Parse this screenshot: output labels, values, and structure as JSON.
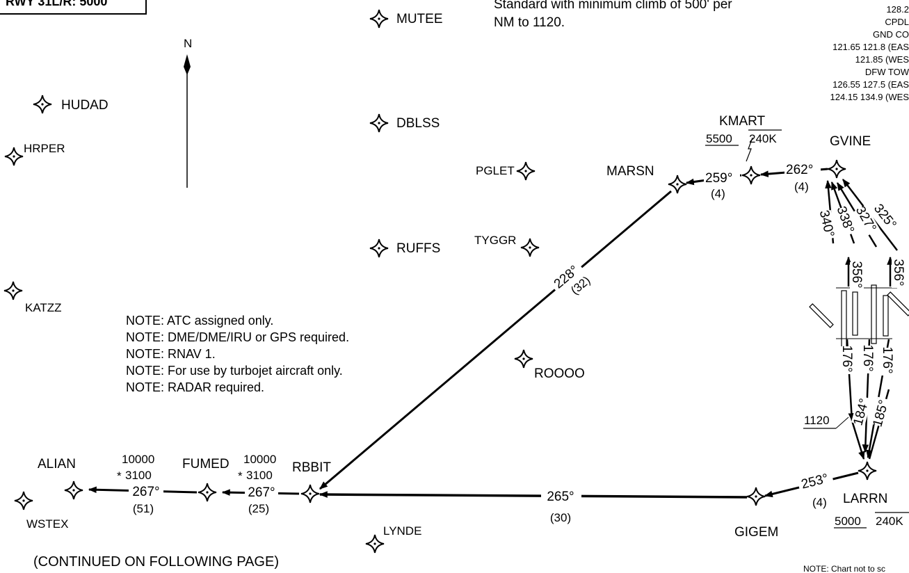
{
  "header": {
    "runway_box": "RWY 31L/R: 5000",
    "climb_text": [
      "Standard with minimum climb of 500' per",
      "NM to 1120."
    ]
  },
  "frequencies": {
    "lines": [
      "128.2",
      "CPDL",
      "GND CO",
      "121.65 121.8 (EAS",
      "121.85 (WES",
      "DFW TOW",
      "126.55  127.5 (EAS",
      "124.15  134.9 (WES"
    ]
  },
  "north_arrow": {
    "label": "N"
  },
  "fixes": {
    "mutee": "MUTEE",
    "hudad": "HUDAD",
    "hrper": "HRPER",
    "dblss": "DBLSS",
    "pglet": "PGLET",
    "marsn": "MARSN",
    "kmart": "KMART",
    "gvine": "GVINE",
    "tyggr": "TYGGR",
    "ruffs": "RUFFS",
    "katzz": "KATZZ",
    "roooo": "ROOOO",
    "alian": "ALIAN",
    "fumed": "FUMED",
    "rbbit": "RBBIT",
    "gigem": "GIGEM",
    "larrn": "LARRN",
    "wstex": "WSTEX",
    "lynde": "LYNDE"
  },
  "restrictions": {
    "kmart_alt": "5500",
    "kmart_speed": "240K",
    "larrn_alt": "5000",
    "larrn_speed": "240K",
    "alian_top": "10000",
    "alian_bottom": "3100",
    "fumed_top": "10000",
    "fumed_bottom": "3100",
    "alt_1120": "1120"
  },
  "legs": {
    "gvine_kmart_course": "262°",
    "gvine_kmart_dist": "(4)",
    "kmart_marsn_course": "259°",
    "kmart_marsn_dist": "(4)",
    "marsn_rbbit_course": "228°",
    "marsn_rbbit_dist": "(32)",
    "gigem_rbbit_course": "265°",
    "gigem_rbbit_dist": "(30)",
    "larrn_gigem_course": "253°",
    "larrn_gigem_dist": "(4)",
    "rbbit_fumed_course": "267°",
    "rbbit_fumed_dist": "(25)",
    "fumed_alian_course": "267°",
    "fumed_alian_dist": "(51)",
    "dep_340": "340°",
    "dep_338": "338°",
    "dep_327": "327°",
    "dep_325": "325°",
    "dep_356a": "356°",
    "dep_356b": "356°",
    "dep_176a": "176°",
    "dep_176b": "176°",
    "dep_176c": "176°",
    "dep_184": "184°",
    "dep_185": "185°"
  },
  "notes": [
    "NOTE: ATC assigned only.",
    "NOTE: DME/DME/IRU or GPS required.",
    "NOTE: RNAV 1.",
    "NOTE: For use by turbojet aircraft only.",
    "NOTE: RADAR required."
  ],
  "footer": {
    "continued": "(CONTINUED ON FOLLOWING PAGE)",
    "scale_note": "NOTE: Chart not to sc"
  }
}
